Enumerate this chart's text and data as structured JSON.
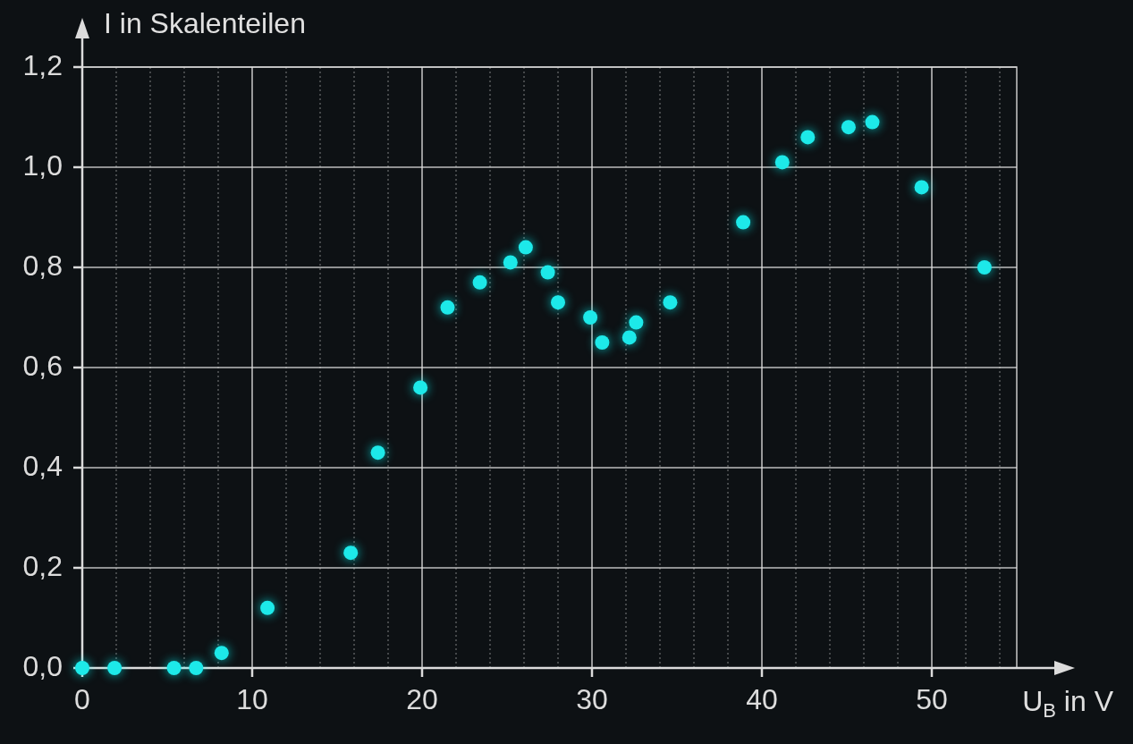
{
  "chart_data": {
    "type": "scatter",
    "xlabel": "U$_{B}$ in V",
    "ylabel": "I in Skalenteilen",
    "xlim": [
      0,
      55
    ],
    "ylim": [
      0,
      1.2
    ],
    "xticks": [
      0,
      {
        "value": 2,
        "label": null
      },
      {
        "value": 4,
        "label": null
      },
      {
        "value": 6,
        "label": null
      },
      {
        "value": 8,
        "label": null
      },
      10,
      {
        "value": 12,
        "label": null
      },
      {
        "value": 14,
        "label": null
      },
      {
        "value": 16,
        "label": null
      },
      {
        "value": 18,
        "label": null
      },
      20,
      {
        "value": 22,
        "label": null
      },
      {
        "value": 24,
        "label": null
      },
      {
        "value": 26,
        "label": null
      },
      {
        "value": 28,
        "label": null
      },
      30,
      {
        "value": 32,
        "label": null
      },
      {
        "value": 34,
        "label": null
      },
      {
        "value": 36,
        "label": null
      },
      {
        "value": 38,
        "label": null
      },
      40,
      {
        "value": 42,
        "label": null
      },
      {
        "value": 44,
        "label": null
      },
      {
        "value": 46,
        "label": null
      },
      {
        "value": 48,
        "label": null
      },
      50,
      {
        "value": 52,
        "label": null
      },
      {
        "value": 54,
        "label": null
      }
    ],
    "yticks": [
      {
        "value": 0,
        "label": "0,0"
      },
      {
        "value": 0.2,
        "label": "0,2"
      },
      {
        "value": 0.4,
        "label": "0,4"
      },
      {
        "value": 0.6,
        "label": "0,6"
      },
      {
        "value": 0.8,
        "label": "0,8"
      },
      {
        "value": 1.0,
        "label": "1,0"
      },
      {
        "value": 1.2,
        "label": "1,2"
      }
    ],
    "grid": true,
    "marker": "circle",
    "series": [
      {
        "color": "#1de9e9",
        "x": [
          0,
          1.9,
          5.4,
          6.7,
          8.2,
          10.9,
          15.8,
          17.4,
          19.9,
          21.5,
          23.4,
          25.2,
          26.1,
          27.4,
          28.0,
          29.9,
          30.6,
          32.2,
          32.6,
          34.6,
          38.9,
          41.2,
          42.7,
          45.1,
          46.5,
          49.4,
          53.1
        ],
        "values": [
          0,
          0,
          0,
          0,
          0.03,
          0.12,
          0.23,
          0.43,
          0.56,
          0.72,
          0.77,
          0.81,
          0.84,
          0.79,
          0.73,
          0.7,
          0.65,
          0.66,
          0.69,
          0.73,
          0.89,
          1.01,
          1.06,
          1.08,
          1.09,
          0.96,
          0.8
        ]
      }
    ]
  }
}
